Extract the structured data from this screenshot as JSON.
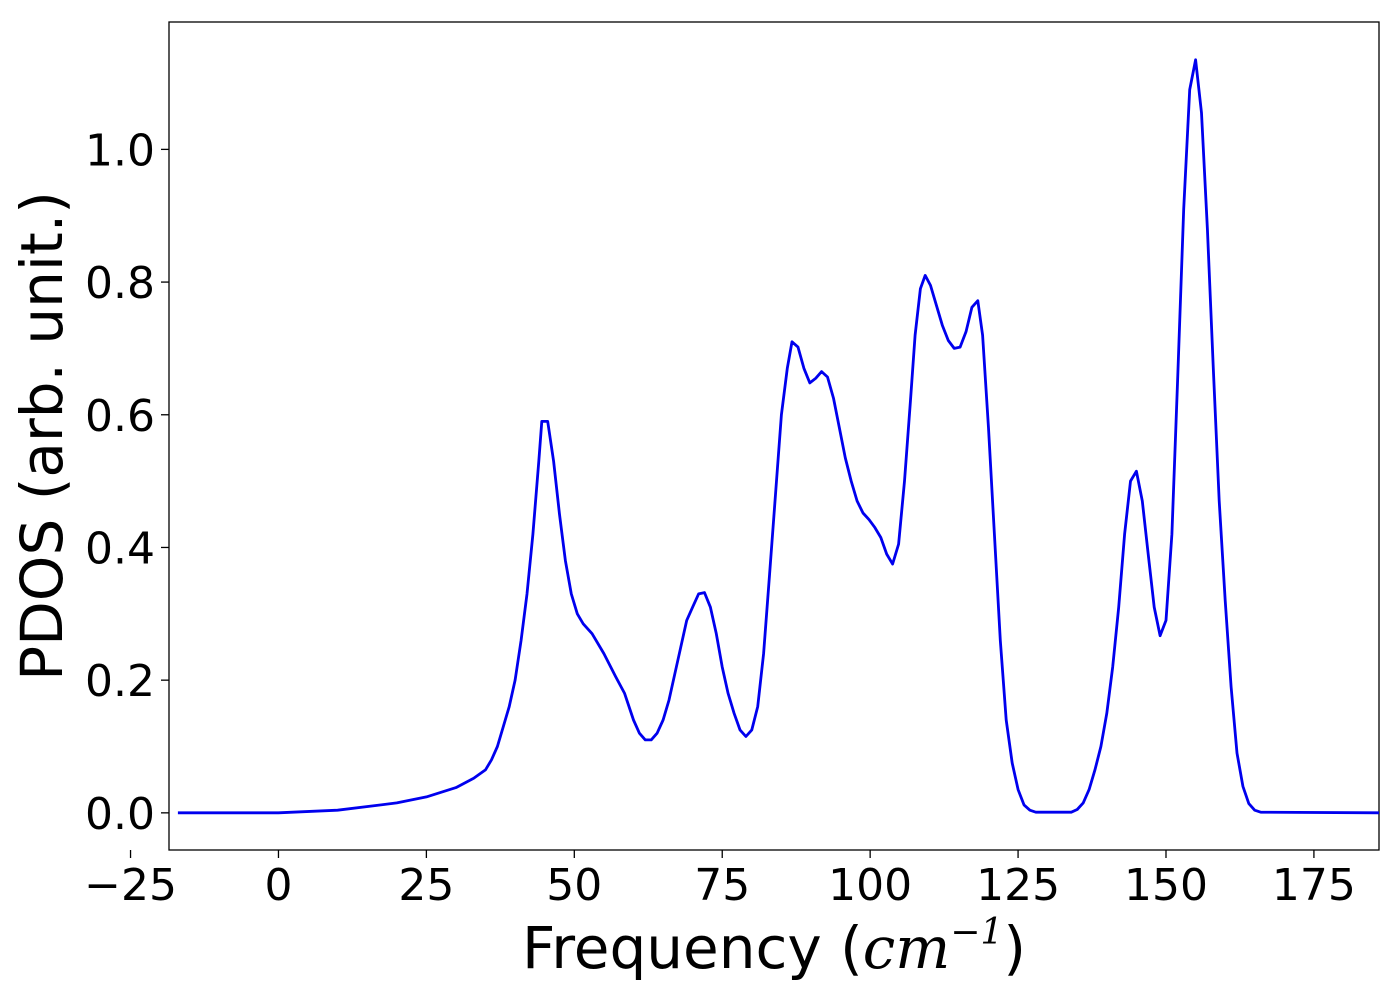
{
  "chart_data": {
    "type": "line",
    "title": "",
    "xlabel": "Frequency (",
    "xlabel_math": "cm",
    "xlabel_sup": "−1",
    "xlabel_end": ")",
    "ylabel": "PDOS (arb. unit.)",
    "xlim": [
      -18.5,
      186
    ],
    "ylim": [
      -0.056,
      1.192
    ],
    "x_ticks": [
      -25,
      0,
      25,
      50,
      75,
      100,
      125,
      150,
      175
    ],
    "x_tick_labels": [
      "−25",
      "0",
      "25",
      "50",
      "75",
      "100",
      "125",
      "150",
      "175"
    ],
    "y_ticks": [
      0.0,
      0.2,
      0.4,
      0.6,
      0.8,
      1.0
    ],
    "y_tick_labels": [
      "0.0",
      "0.2",
      "0.4",
      "0.6",
      "0.8",
      "1.0"
    ],
    "grid": false,
    "series": [
      {
        "color": "#0000ee",
        "points": [
          [
            -17,
            0
          ],
          [
            0,
            0
          ],
          [
            10,
            0.004
          ],
          [
            20,
            0.015
          ],
          [
            25,
            0.024
          ],
          [
            30,
            0.038
          ],
          [
            33,
            0.052
          ],
          [
            35,
            0.065
          ],
          [
            36,
            0.08
          ],
          [
            37,
            0.1
          ],
          [
            38,
            0.13
          ],
          [
            39,
            0.16
          ],
          [
            40,
            0.2
          ],
          [
            41,
            0.26
          ],
          [
            42,
            0.33
          ],
          [
            43,
            0.42
          ],
          [
            44,
            0.53
          ],
          [
            44.5,
            0.59
          ],
          [
            45.5,
            0.59
          ],
          [
            46.5,
            0.53
          ],
          [
            47.5,
            0.45
          ],
          [
            48.5,
            0.38
          ],
          [
            49.5,
            0.33
          ],
          [
            50.5,
            0.3
          ],
          [
            51.5,
            0.285
          ],
          [
            53,
            0.27
          ],
          [
            55,
            0.24
          ],
          [
            57,
            0.205
          ],
          [
            58.5,
            0.18
          ],
          [
            60,
            0.14
          ],
          [
            61,
            0.12
          ],
          [
            62,
            0.11
          ],
          [
            63,
            0.11
          ],
          [
            64,
            0.12
          ],
          [
            65,
            0.14
          ],
          [
            66,
            0.17
          ],
          [
            67,
            0.21
          ],
          [
            68,
            0.25
          ],
          [
            69,
            0.29
          ],
          [
            70,
            0.31
          ],
          [
            71,
            0.33
          ],
          [
            72,
            0.332
          ],
          [
            73,
            0.31
          ],
          [
            74,
            0.27
          ],
          [
            75,
            0.22
          ],
          [
            76,
            0.18
          ],
          [
            77,
            0.15
          ],
          [
            78,
            0.125
          ],
          [
            79,
            0.115
          ],
          [
            80,
            0.125
          ],
          [
            81,
            0.16
          ],
          [
            82,
            0.24
          ],
          [
            83,
            0.36
          ],
          [
            84,
            0.48
          ],
          [
            85,
            0.6
          ],
          [
            86,
            0.67
          ],
          [
            86.8,
            0.71
          ],
          [
            87.8,
            0.702
          ],
          [
            88.8,
            0.67
          ],
          [
            89.8,
            0.648
          ],
          [
            90.8,
            0.655
          ],
          [
            91.8,
            0.665
          ],
          [
            92.8,
            0.657
          ],
          [
            93.8,
            0.625
          ],
          [
            94.8,
            0.58
          ],
          [
            95.8,
            0.535
          ],
          [
            96.8,
            0.5
          ],
          [
            97.8,
            0.47
          ],
          [
            98.8,
            0.452
          ],
          [
            99.8,
            0.442
          ],
          [
            100.8,
            0.43
          ],
          [
            101.8,
            0.415
          ],
          [
            102.8,
            0.39
          ],
          [
            103.8,
            0.375
          ],
          [
            104.8,
            0.405
          ],
          [
            105.8,
            0.5
          ],
          [
            106.8,
            0.62
          ],
          [
            107.6,
            0.72
          ],
          [
            108.5,
            0.79
          ],
          [
            109.3,
            0.81
          ],
          [
            110.2,
            0.795
          ],
          [
            111.2,
            0.765
          ],
          [
            112.2,
            0.735
          ],
          [
            113.2,
            0.712
          ],
          [
            114.2,
            0.7
          ],
          [
            115.2,
            0.702
          ],
          [
            116.2,
            0.725
          ],
          [
            117.2,
            0.762
          ],
          [
            118.2,
            0.772
          ],
          [
            119,
            0.72
          ],
          [
            120,
            0.58
          ],
          [
            121,
            0.42
          ],
          [
            122,
            0.26
          ],
          [
            123,
            0.14
          ],
          [
            124,
            0.075
          ],
          [
            125,
            0.035
          ],
          [
            126,
            0.012
          ],
          [
            127,
            0.004
          ],
          [
            128,
            0.001
          ],
          [
            134,
            0.001
          ],
          [
            135,
            0.005
          ],
          [
            136,
            0.015
          ],
          [
            137,
            0.035
          ],
          [
            138,
            0.065
          ],
          [
            139,
            0.1
          ],
          [
            140,
            0.15
          ],
          [
            141,
            0.22
          ],
          [
            142,
            0.31
          ],
          [
            143,
            0.42
          ],
          [
            144,
            0.5
          ],
          [
            145,
            0.515
          ],
          [
            146,
            0.47
          ],
          [
            147,
            0.39
          ],
          [
            148,
            0.31
          ],
          [
            149,
            0.267
          ],
          [
            150,
            0.29
          ],
          [
            151,
            0.42
          ],
          [
            152,
            0.66
          ],
          [
            153,
            0.91
          ],
          [
            154,
            1.09
          ],
          [
            155,
            1.135
          ],
          [
            156,
            1.055
          ],
          [
            157,
            0.88
          ],
          [
            158,
            0.67
          ],
          [
            159,
            0.47
          ],
          [
            160,
            0.32
          ],
          [
            161,
            0.19
          ],
          [
            162,
            0.09
          ],
          [
            163,
            0.04
          ],
          [
            164,
            0.014
          ],
          [
            165,
            0.004
          ],
          [
            166,
            0.001
          ],
          [
            186,
            0
          ]
        ]
      }
    ]
  }
}
